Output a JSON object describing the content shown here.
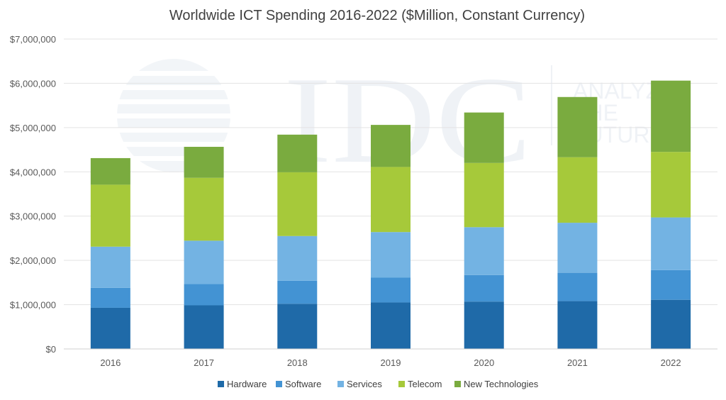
{
  "chart_data": {
    "type": "bar",
    "stacked": true,
    "title": "Worldwide ICT Spending 2016-2022 ($Million, Constant Currency)",
    "xlabel": "",
    "ylabel": "",
    "categories": [
      "2016",
      "2017",
      "2018",
      "2019",
      "2020",
      "2021",
      "2022"
    ],
    "y_ticks": [
      "$0",
      "$1,000,000",
      "$2,000,000",
      "$3,000,000",
      "$4,000,000",
      "$5,000,000",
      "$6,000,000",
      "$7,000,000"
    ],
    "ylim": [
      0,
      7000000
    ],
    "grid": true,
    "legend_position": "bottom",
    "series": [
      {
        "name": "Hardware",
        "color": "#1f6aa8",
        "values": [
          930000,
          985000,
          1020000,
          1050000,
          1070000,
          1080000,
          1110000
        ]
      },
      {
        "name": "Software",
        "color": "#4393d3",
        "values": [
          450000,
          480000,
          520000,
          560000,
          600000,
          640000,
          670000
        ]
      },
      {
        "name": "Services",
        "color": "#73b3e3",
        "values": [
          930000,
          980000,
          1010000,
          1030000,
          1080000,
          1130000,
          1190000
        ]
      },
      {
        "name": "Telecom",
        "color": "#a6c93a",
        "values": [
          1400000,
          1420000,
          1440000,
          1470000,
          1450000,
          1480000,
          1480000
        ]
      },
      {
        "name": "New Technologies",
        "color": "#7aab3f",
        "values": [
          600000,
          700000,
          850000,
          950000,
          1140000,
          1360000,
          1610000
        ]
      }
    ]
  },
  "watermark": {
    "logo_text": "IDC",
    "tagline_lines": [
      "ANALYZE",
      "THE",
      "FUTURE"
    ]
  }
}
